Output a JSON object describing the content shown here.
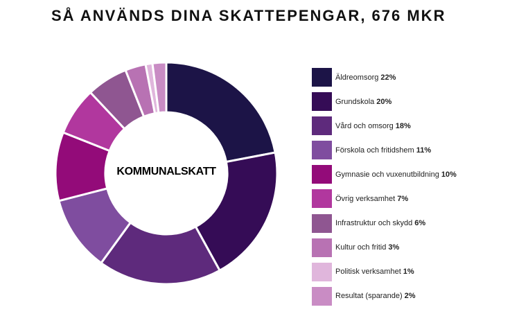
{
  "chart_data": {
    "type": "pie",
    "title": "SÅ ANVÄNDS DINA SKATTEPENGAR, 676 MKR",
    "center_label": "KOMMUNALSKATT",
    "donut": true,
    "legend_position": "right",
    "slices": [
      {
        "label": "Äldreomsorg",
        "value": 22,
        "value_label": "22%",
        "color": "#1c1447"
      },
      {
        "label": "Grundskola",
        "value": 20,
        "value_label": "20%",
        "color": "#350c56"
      },
      {
        "label": "Vård och omsorg",
        "value": 18,
        "value_label": "18%",
        "color": "#5e2a7c"
      },
      {
        "label": "Förskola och fritidshem",
        "value": 11,
        "value_label": "11%",
        "color": "#7f4d9f"
      },
      {
        "label": "Gymnasie och vuxenutbildning",
        "value": 10,
        "value_label": "10%",
        "color": "#930b79"
      },
      {
        "label": "Övrig verksamhet",
        "value": 7,
        "value_label": "7%",
        "color": "#b1379e"
      },
      {
        "label": "Infrastruktur och skydd",
        "value": 6,
        "value_label": "6%",
        "color": "#8f5691"
      },
      {
        "label": "Kultur och fritid",
        "value": 3,
        "value_label": "3%",
        "color": "#b872b3"
      },
      {
        "label": "Politisk verksamhet",
        "value": 1,
        "value_label": "1%",
        "color": "#e0b6dc"
      },
      {
        "label": "Resultat (sparande)",
        "value": 2,
        "value_label": "2%",
        "color": "#c98cc4"
      }
    ]
  }
}
